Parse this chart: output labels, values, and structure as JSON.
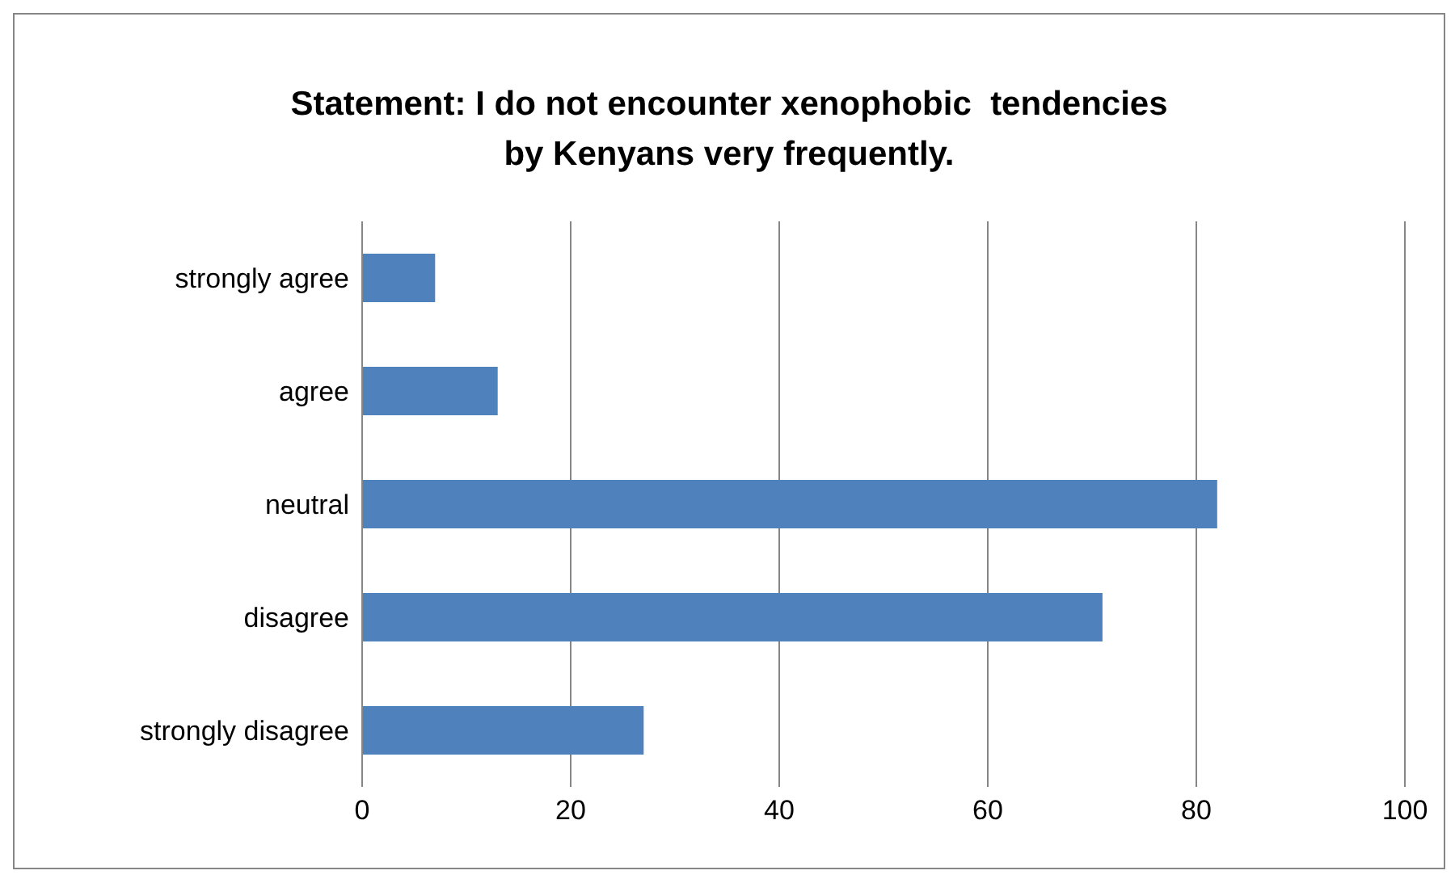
{
  "chart_data": {
    "type": "bar",
    "orientation": "horizontal",
    "title": "Statement: I do not encounter xenophobic  tendencies\nby Kenyans very frequently.",
    "categories": [
      "strongly agree",
      "agree",
      "neutral",
      "disagree",
      "strongly disagree"
    ],
    "values": [
      7,
      13,
      82,
      71,
      27
    ],
    "color": "#4f81bd",
    "xlim": [
      0,
      100
    ],
    "xticks": [
      0,
      20,
      40,
      60,
      80,
      100
    ],
    "grid": "x",
    "legend": false
  }
}
